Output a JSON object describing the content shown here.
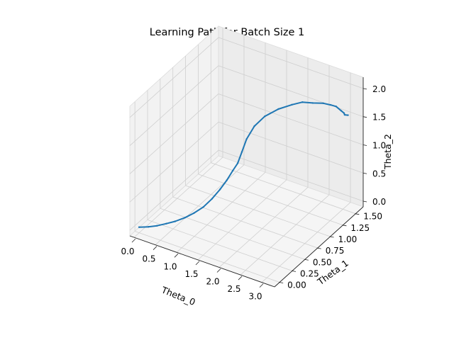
{
  "chart_data": {
    "type": "line",
    "projection": "3d",
    "title": "Learning Path for Batch Size 1",
    "xlabel": "Theta_0",
    "ylabel": "Theta_1",
    "zlabel": "Theta_2",
    "xlim": [
      -0.1,
      3.3
    ],
    "ylim": [
      -0.1,
      1.65
    ],
    "zlim": [
      -0.1,
      2.2
    ],
    "x_ticks": [
      "0.0",
      "0.5",
      "1.0",
      "1.5",
      "2.0",
      "2.5",
      "3.0"
    ],
    "y_ticks": [
      "0.00",
      "0.25",
      "0.50",
      "0.75",
      "1.00",
      "1.25",
      "1.50"
    ],
    "z_ticks": [
      "0.0",
      "0.5",
      "1.0",
      "1.5",
      "2.0"
    ],
    "grid": true,
    "series": [
      {
        "color": "#1f77b4",
        "x": [
          0.0,
          0.18,
          0.35,
          0.52,
          0.68,
          0.85,
          1.0,
          1.15,
          1.28,
          1.4,
          1.5,
          1.58,
          1.65,
          1.7,
          1.75,
          1.85,
          2.0,
          2.2,
          2.4,
          2.55,
          2.7,
          2.85,
          2.95,
          3.02,
          3.08,
          3.1,
          3.08,
          3.12
        ],
        "y": [
          0.0,
          0.03,
          0.06,
          0.1,
          0.14,
          0.19,
          0.24,
          0.3,
          0.36,
          0.42,
          0.47,
          0.52,
          0.56,
          0.6,
          0.65,
          0.72,
          0.8,
          0.9,
          1.0,
          1.08,
          1.16,
          1.24,
          1.3,
          1.35,
          1.4,
          1.44,
          1.47,
          1.5
        ],
        "z": [
          0.0,
          0.03,
          0.07,
          0.12,
          0.17,
          0.24,
          0.32,
          0.42,
          0.55,
          0.7,
          0.85,
          1.0,
          1.12,
          1.3,
          1.5,
          1.7,
          1.85,
          1.95,
          2.0,
          2.02,
          1.98,
          1.95,
          1.9,
          1.85,
          1.75,
          1.68,
          1.62,
          1.6
        ]
      }
    ]
  }
}
